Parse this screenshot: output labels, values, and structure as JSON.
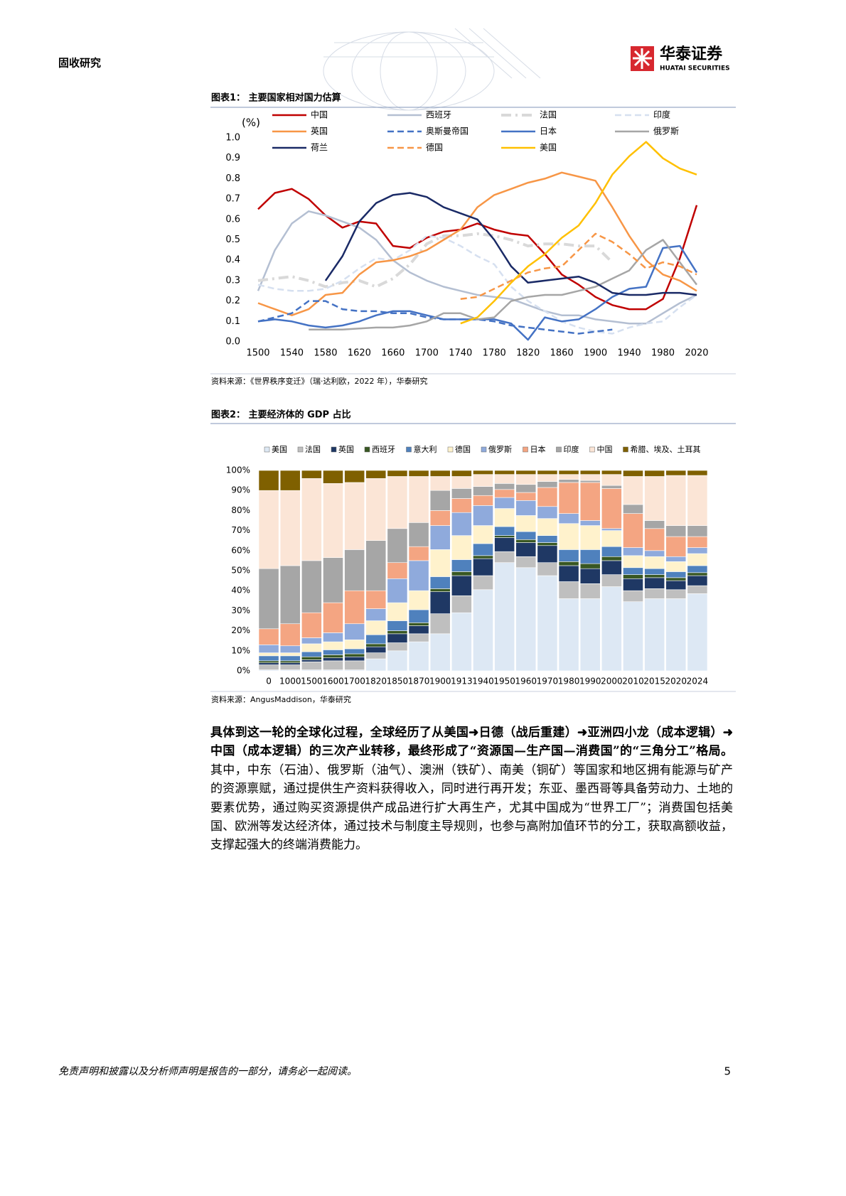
{
  "header": {
    "section": "固收研究",
    "logo_cn": "华泰证券",
    "logo_en": "HUATAI SECURITIES"
  },
  "chart_data": [
    {
      "type": "line",
      "title": "图表1：  主要国家相对国力估算",
      "ylabel": "(%)",
      "source": "资料来源：《世界秩序变迁》（瑞·达利欧，2022 年），华泰研究",
      "x": [
        1500,
        1520,
        1540,
        1560,
        1580,
        1600,
        1620,
        1640,
        1660,
        1680,
        1700,
        1720,
        1740,
        1760,
        1780,
        1800,
        1820,
        1840,
        1860,
        1880,
        1900,
        1920,
        1940,
        1960,
        1980,
        2000,
        2020
      ],
      "xlim": [
        1500,
        2020
      ],
      "xticks": [
        1500,
        1540,
        1580,
        1620,
        1660,
        1700,
        1740,
        1780,
        1820,
        1860,
        1900,
        1940,
        1980,
        2020
      ],
      "ylim": [
        0,
        1
      ],
      "yticks": [
        {
          "value": 0,
          "label": "0.0"
        },
        0.1,
        0.2,
        0.3,
        0.4,
        0.5,
        0.6,
        0.7,
        0.8,
        0.9,
        {
          "value": 1,
          "label": "1.0"
        }
      ],
      "legend": "top",
      "series": [
        {
          "name": "中国",
          "color": "#c00000",
          "dash": "solid",
          "values": [
            0.65,
            0.73,
            0.75,
            0.7,
            0.62,
            0.56,
            0.59,
            0.58,
            0.47,
            0.46,
            0.51,
            0.54,
            0.55,
            0.58,
            0.55,
            0.53,
            0.52,
            0.43,
            0.33,
            0.28,
            0.22,
            0.18,
            0.16,
            0.16,
            0.21,
            0.41,
            0.67
          ]
        },
        {
          "name": "西班牙",
          "color": "#b4bfd2",
          "dash": "solid",
          "values": [
            0.25,
            0.45,
            0.58,
            0.64,
            0.62,
            0.59,
            0.56,
            0.5,
            0.4,
            0.34,
            0.3,
            0.27,
            0.25,
            0.23,
            0.22,
            0.21,
            0.18,
            0.15,
            0.13,
            0.13,
            0.11,
            0.1,
            0.09,
            0.09,
            0.14,
            0.19,
            0.23
          ]
        },
        {
          "name": "法国",
          "color": "#d9d9d9",
          "dash": "dashdot",
          "values": [
            0.3,
            0.31,
            0.32,
            0.3,
            0.27,
            0.29,
            0.3,
            0.27,
            0.31,
            0.38,
            0.48,
            0.52,
            0.52,
            0.53,
            0.52,
            0.5,
            0.47,
            0.48,
            0.48,
            0.47,
            0.47,
            0.39,
            null,
            null,
            null,
            null,
            null
          ]
        },
        {
          "name": "印度",
          "color": "#d6e0f0",
          "dash": "dashed",
          "values": [
            0.28,
            0.26,
            0.25,
            0.25,
            0.26,
            0.3,
            0.36,
            0.41,
            0.4,
            0.45,
            0.52,
            0.51,
            0.47,
            0.42,
            0.38,
            0.27,
            0.2,
            0.15,
            0.1,
            0.07,
            0.05,
            0.04,
            0.07,
            0.09,
            0.1,
            0.17,
            0.23
          ]
        },
        {
          "name": "英国",
          "color": "#f79646",
          "dash": "solid",
          "values": [
            0.19,
            0.16,
            0.13,
            0.16,
            0.23,
            0.24,
            0.33,
            0.39,
            0.4,
            0.42,
            0.45,
            0.5,
            0.55,
            0.66,
            0.72,
            0.75,
            0.78,
            0.8,
            0.83,
            0.81,
            0.79,
            0.66,
            0.52,
            0.4,
            0.33,
            0.3,
            0.25
          ]
        },
        {
          "name": "奥斯曼帝国",
          "color": "#4472c4",
          "dash": "dashed",
          "values": [
            0.1,
            0.12,
            0.14,
            0.2,
            0.2,
            0.16,
            0.15,
            0.15,
            0.14,
            0.14,
            0.12,
            0.11,
            0.11,
            0.11,
            0.1,
            0.08,
            0.07,
            0.06,
            0.05,
            0.04,
            0.05,
            0.06,
            null,
            null,
            null,
            null,
            null
          ]
        },
        {
          "name": "日本",
          "color": "#4472c4",
          "dash": "solid",
          "values": [
            0.1,
            0.11,
            0.1,
            0.08,
            0.07,
            0.08,
            0.1,
            0.13,
            0.15,
            0.15,
            0.13,
            0.11,
            0.11,
            0.11,
            0.11,
            0.09,
            0.01,
            0.12,
            0.1,
            0.11,
            0.16,
            0.22,
            0.26,
            0.27,
            0.46,
            0.47,
            0.34
          ]
        },
        {
          "name": "俄罗斯",
          "color": "#a6a6a6",
          "dash": "solid",
          "values": [
            null,
            null,
            null,
            0.06,
            0.06,
            0.06,
            0.065,
            0.07,
            0.07,
            0.08,
            0.1,
            0.14,
            0.14,
            0.11,
            0.12,
            0.2,
            0.22,
            0.23,
            0.23,
            0.25,
            0.27,
            0.31,
            0.35,
            0.45,
            0.5,
            0.39,
            0.28
          ]
        },
        {
          "name": "荷兰",
          "color": "#1a2a66",
          "dash": "solid",
          "values": [
            null,
            null,
            null,
            null,
            0.3,
            0.42,
            0.59,
            0.68,
            0.72,
            0.73,
            0.71,
            0.66,
            0.63,
            0.6,
            0.5,
            0.37,
            0.29,
            0.3,
            0.31,
            0.32,
            0.29,
            0.24,
            0.23,
            0.23,
            0.24,
            0.24,
            0.23
          ]
        },
        {
          "name": "德国",
          "color": "#f79646",
          "dash": "dashed",
          "values": [
            null,
            null,
            null,
            null,
            null,
            null,
            null,
            null,
            null,
            null,
            null,
            null,
            0.21,
            0.22,
            0.26,
            0.3,
            0.34,
            0.36,
            0.37,
            0.45,
            0.53,
            0.49,
            0.43,
            0.36,
            0.39,
            0.37,
            0.33
          ]
        },
        {
          "name": "美国",
          "color": "#ffc000",
          "dash": "solid",
          "values": [
            null,
            null,
            null,
            null,
            null,
            null,
            null,
            null,
            null,
            null,
            null,
            null,
            0.09,
            0.12,
            0.2,
            0.29,
            0.37,
            0.43,
            0.51,
            0.57,
            0.68,
            0.82,
            0.91,
            0.98,
            0.9,
            0.85,
            0.82
          ]
        }
      ]
    },
    {
      "type": "bar",
      "stacked": true,
      "title": "图表2：  主要经济体的 GDP 占比",
      "source": "资料来源：AngusMaddison，华泰研究",
      "categories": [
        "0",
        "1000",
        "1500",
        "1600",
        "1700",
        "1820",
        "1850",
        "1870",
        "1900",
        "1913",
        "1940",
        "1950",
        "1960",
        "1970",
        "1980",
        "1990",
        "2000",
        "2010",
        "2015",
        "2020",
        "2024"
      ],
      "ylim": [
        0,
        100
      ],
      "yticks": [
        {
          "value": 0,
          "label": "0%"
        },
        {
          "value": 10,
          "label": "10%"
        },
        {
          "value": 20,
          "label": "20%"
        },
        {
          "value": 30,
          "label": "30%"
        },
        {
          "value": 40,
          "label": "40%"
        },
        {
          "value": 50,
          "label": "50%"
        },
        {
          "value": 60,
          "label": "60%"
        },
        {
          "value": 70,
          "label": "70%"
        },
        {
          "value": 80,
          "label": "80%"
        },
        {
          "value": 90,
          "label": "90%"
        },
        {
          "value": 100,
          "label": "100%"
        }
      ],
      "legend": "top",
      "series": [
        {
          "name": "美国",
          "color": "#dde8f4",
          "values": [
            0.5,
            0.5,
            0.5,
            0.5,
            0.5,
            6,
            10,
            14.5,
            18.5,
            29,
            40.5,
            54,
            51.5,
            47.5,
            36,
            36,
            42,
            34.5,
            36,
            36,
            38.5
          ]
        },
        {
          "name": "法国",
          "color": "#bfbfbf",
          "values": [
            2.5,
            2.5,
            4,
            4.5,
            4.5,
            3,
            4,
            4,
            10,
            8.5,
            7,
            5.5,
            5.5,
            6.5,
            8.5,
            7.5,
            6,
            5.5,
            5,
            4.5,
            4
          ]
        },
        {
          "name": "英国",
          "color": "#1f3864",
          "values": [
            1,
            1,
            1,
            1.5,
            2,
            3,
            4.5,
            4,
            11,
            10,
            8.5,
            7,
            7,
            8.5,
            8,
            7.5,
            7,
            6,
            5.5,
            4.5,
            5
          ]
        },
        {
          "name": "西班牙",
          "color": "#385723",
          "values": [
            1,
            1,
            1.5,
            1.5,
            1.5,
            1.5,
            1.5,
            1.5,
            1.5,
            2,
            1.5,
            1,
            1.5,
            1.5,
            2,
            2.5,
            2,
            2,
            1.5,
            1.5,
            1.5
          ]
        },
        {
          "name": "意大利",
          "color": "#4f81bd",
          "values": [
            2.5,
            2.5,
            2.5,
            2.5,
            2.5,
            4.5,
            5,
            6.5,
            6,
            6,
            6,
            4.5,
            4,
            3.5,
            6,
            7,
            5,
            3.5,
            3,
            3,
            3.5
          ]
        },
        {
          "name": "德国",
          "color": "#fff2cc",
          "values": [
            1.5,
            1.5,
            4,
            4,
            4.5,
            7,
            9,
            9.5,
            13.5,
            12,
            9,
            9,
            8,
            8.5,
            13,
            12,
            8,
            6,
            6,
            5,
            6
          ]
        },
        {
          "name": "俄罗斯",
          "color": "#8faadc",
          "values": [
            4,
            3.5,
            3,
            4.5,
            8,
            6,
            12,
            15,
            12,
            11.5,
            10,
            5.5,
            7.5,
            6,
            5,
            2.5,
            1,
            4,
            3,
            2.5,
            3
          ]
        },
        {
          "name": "日本",
          "color": "#f4a582",
          "values": [
            8,
            11,
            12.5,
            15,
            16.5,
            9,
            8,
            7,
            7.5,
            7,
            5,
            4,
            4,
            9.5,
            15.5,
            19,
            20,
            17,
            11,
            10,
            5.5
          ]
        },
        {
          "name": "印度",
          "color": "#a6a6a6",
          "values": [
            30,
            29,
            26,
            22.5,
            20.5,
            25,
            17,
            12,
            10,
            5,
            4.5,
            3,
            4,
            3,
            1.5,
            1,
            1.5,
            4.5,
            4,
            5.5,
            5.5
          ]
        },
        {
          "name": "中国",
          "color": "#fbe5d6",
          "values": [
            39,
            37.5,
            41,
            37,
            33.5,
            31,
            26,
            23,
            7,
            6,
            6,
            4.5,
            5,
            3.5,
            2.5,
            3,
            5.5,
            14,
            22,
            25,
            25
          ]
        },
        {
          "name": "希腊、埃及、土耳其",
          "color": "#7f6000",
          "values": [
            10,
            10,
            4,
            6.5,
            6,
            4,
            3,
            3,
            3,
            3,
            2,
            2,
            2,
            2,
            2,
            2,
            2,
            3,
            3,
            2.5,
            2.5
          ]
        }
      ]
    }
  ],
  "paragraph": {
    "bold": "具体到这一轮的全球化过程，全球经历了从美国➜日德（战后重建）➜亚洲四小龙（成本逻辑）➜中国（成本逻辑）的三次产业转移，最终形成了“资源国—生产国—消费国”的“三角分工”格局。",
    "text": "其中，中东（石油）、俄罗斯（油气）、澳洲（铁矿）、南美（铜矿）等国家和地区拥有能源与矿产的资源禀赋，通过提供生产资料获得收入，同时进行再开发；东亚、墨西哥等具备劳动力、土地的要素优势，通过购买资源提供产成品进行扩大再生产，尤其中国成为“世界工厂”；消费国包括美国、欧洲等发达经济体，通过技术与制度主导规则，也参与高附加值环节的分工，获取高额收益，支撑起强大的终端消费能力。"
  },
  "footer": {
    "disclaimer": "免责声明和披露以及分析师声明是报告的一部分，请务必一起阅读。",
    "page": 5
  }
}
